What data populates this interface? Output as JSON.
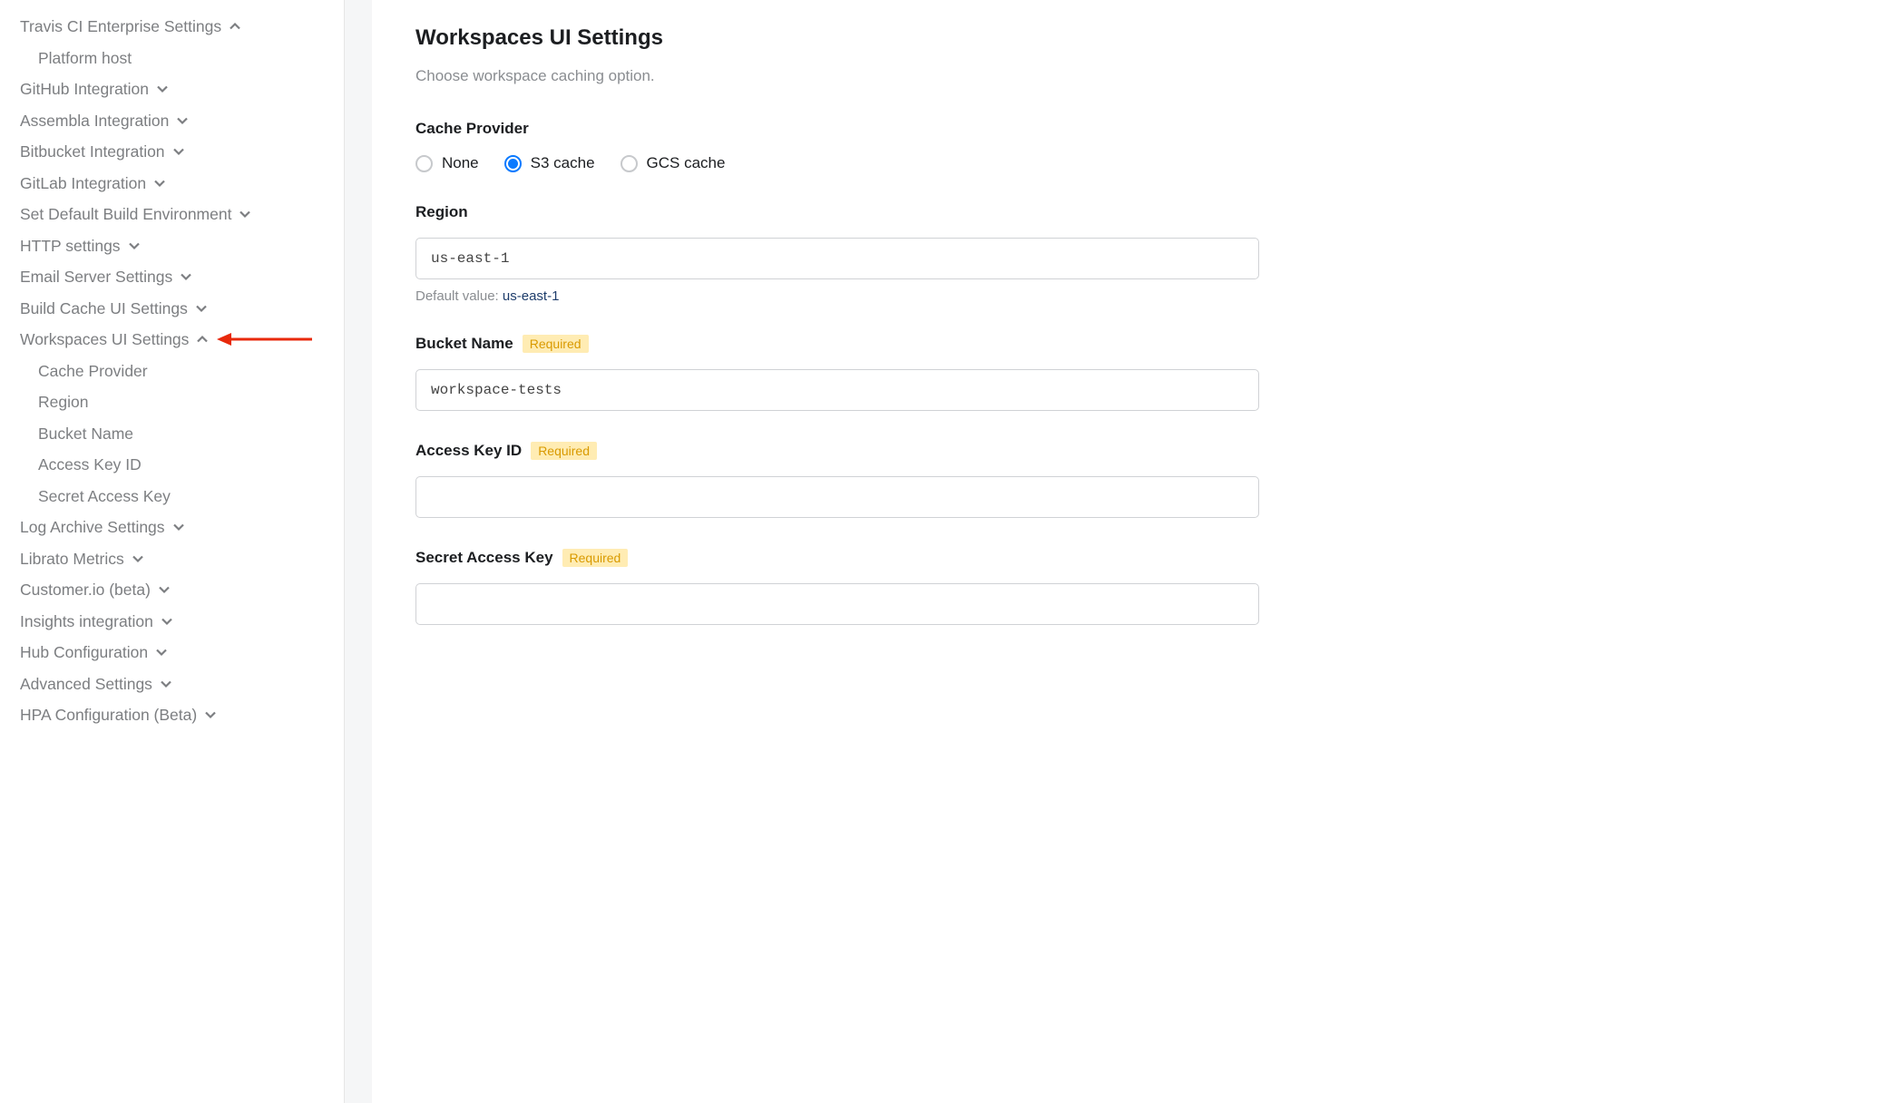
{
  "sidebar": {
    "items": [
      {
        "label": "Travis CI Enterprise Settings",
        "chevron": "up",
        "sub": false
      },
      {
        "label": "Platform host",
        "chevron": null,
        "sub": true
      },
      {
        "label": "GitHub Integration",
        "chevron": "down",
        "sub": false
      },
      {
        "label": "Assembla Integration",
        "chevron": "down",
        "sub": false
      },
      {
        "label": "Bitbucket Integration",
        "chevron": "down",
        "sub": false
      },
      {
        "label": "GitLab Integration",
        "chevron": "down",
        "sub": false
      },
      {
        "label": "Set Default Build Environment",
        "chevron": "down",
        "sub": false
      },
      {
        "label": "HTTP settings",
        "chevron": "down",
        "sub": false
      },
      {
        "label": "Email Server Settings",
        "chevron": "down",
        "sub": false
      },
      {
        "label": "Build Cache UI Settings",
        "chevron": "down",
        "sub": false
      },
      {
        "label": "Workspaces UI Settings",
        "chevron": "up",
        "sub": false,
        "arrow": true
      },
      {
        "label": "Cache Provider",
        "chevron": null,
        "sub": true
      },
      {
        "label": "Region",
        "chevron": null,
        "sub": true
      },
      {
        "label": "Bucket Name",
        "chevron": null,
        "sub": true
      },
      {
        "label": "Access Key ID",
        "chevron": null,
        "sub": true
      },
      {
        "label": "Secret Access Key",
        "chevron": null,
        "sub": true
      },
      {
        "label": "Log Archive Settings",
        "chevron": "down",
        "sub": false
      },
      {
        "label": "Librato Metrics",
        "chevron": "down",
        "sub": false
      },
      {
        "label": "Customer.io (beta)",
        "chevron": "down",
        "sub": false
      },
      {
        "label": "Insights integration",
        "chevron": "down",
        "sub": false
      },
      {
        "label": "Hub Configuration",
        "chevron": "down",
        "sub": false
      },
      {
        "label": "Advanced Settings",
        "chevron": "down",
        "sub": false
      },
      {
        "label": "HPA Configuration (Beta)",
        "chevron": "down",
        "sub": false
      }
    ]
  },
  "main": {
    "title": "Workspaces UI Settings",
    "subtitle": "Choose workspace caching option.",
    "cache_provider": {
      "label": "Cache Provider",
      "options": [
        {
          "label": "None",
          "selected": false
        },
        {
          "label": "S3 cache",
          "selected": true
        },
        {
          "label": "GCS cache",
          "selected": false
        }
      ]
    },
    "region": {
      "label": "Region",
      "value": "us-east-1",
      "helper_prefix": "Default value: ",
      "helper_value": "us-east-1"
    },
    "bucket_name": {
      "label": "Bucket Name",
      "required": "Required",
      "value": "workspace-tests"
    },
    "access_key_id": {
      "label": "Access Key ID",
      "required": "Required",
      "value": ""
    },
    "secret_access_key": {
      "label": "Secret Access Key",
      "required": "Required",
      "value": ""
    }
  },
  "colors": {
    "sidebar_text": "#7c7e81",
    "accent_blue": "#0a7aff",
    "required_bg": "#ffecb3",
    "required_fg": "#d99a00",
    "arrow_red": "#e8290b",
    "input_border": "#d0d2d5",
    "helper_value": "#1e3d6b"
  }
}
